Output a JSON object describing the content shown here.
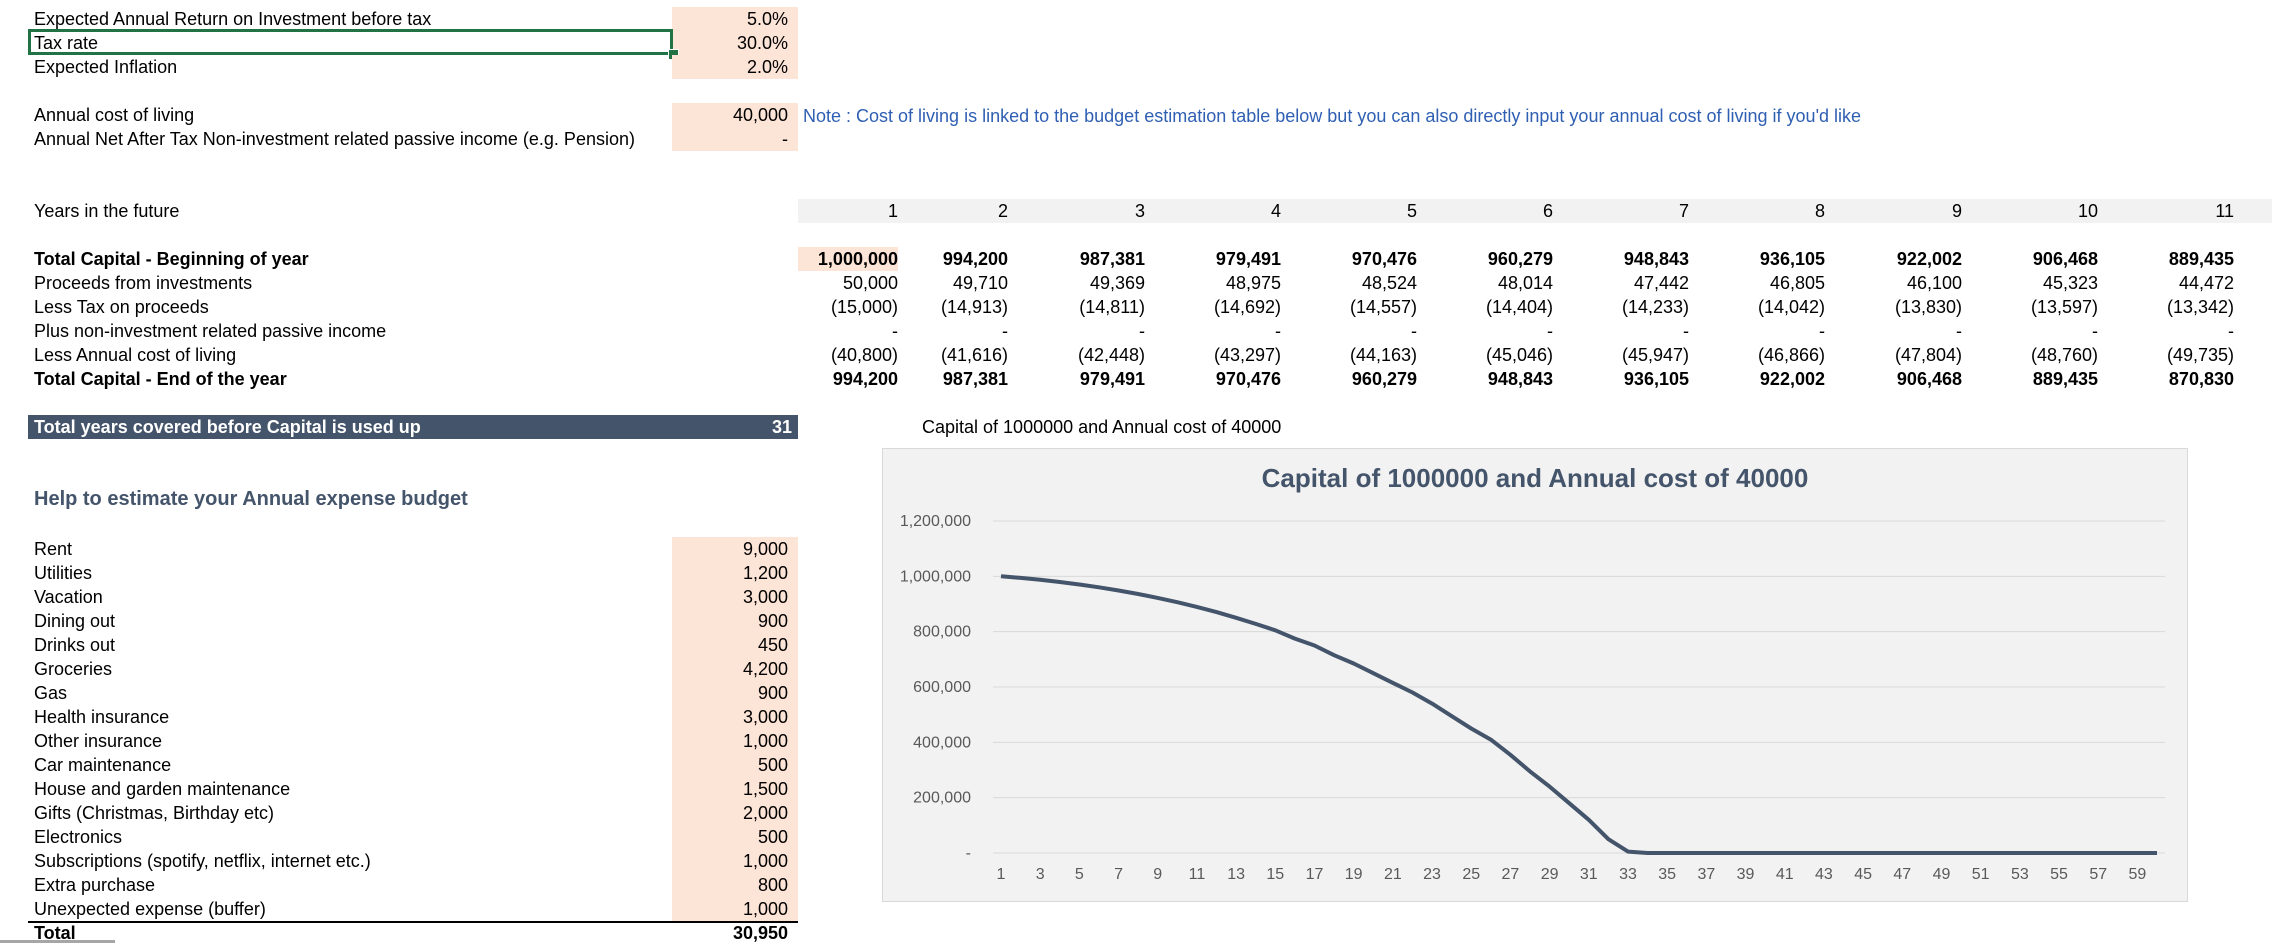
{
  "inputs": {
    "return_label": "Expected Annual Return on Investment before tax",
    "return_value": "5.0%",
    "tax_label": "Tax rate",
    "tax_value": "30.0%",
    "inflation_label": "Expected Inflation",
    "inflation_value": "2.0%",
    "cost_label": "Annual cost of living",
    "cost_value": "40,000",
    "cost_note": "Note : Cost of living is linked to the budget estimation table below but you can also directly input your annual cost of living if you'd like",
    "passive_label": "Annual Net After Tax Non-investment related passive income (e.g. Pension)",
    "passive_value": "-"
  },
  "projection": {
    "years_label": "Years in the future",
    "years": [
      "1",
      "2",
      "3",
      "4",
      "5",
      "6",
      "7",
      "8",
      "9",
      "10",
      "11"
    ],
    "rows": [
      {
        "label": "Total Capital - Beginning of year",
        "bold": true,
        "values": [
          "1,000,000",
          "994,200",
          "987,381",
          "979,491",
          "970,476",
          "960,279",
          "948,843",
          "936,105",
          "922,002",
          "906,468",
          "889,435"
        ]
      },
      {
        "label": "Proceeds from investments",
        "bold": false,
        "values": [
          "50,000",
          "49,710",
          "49,369",
          "48,975",
          "48,524",
          "48,014",
          "47,442",
          "46,805",
          "46,100",
          "45,323",
          "44,472"
        ]
      },
      {
        "label": "Less Tax on proceeds",
        "bold": false,
        "values": [
          "(15,000)",
          "(14,913)",
          "(14,811)",
          "(14,692)",
          "(14,557)",
          "(14,404)",
          "(14,233)",
          "(14,042)",
          "(13,830)",
          "(13,597)",
          "(13,342)"
        ]
      },
      {
        "label": "Plus non-investment related passive income",
        "bold": false,
        "values": [
          "-",
          "-",
          "-",
          "-",
          "-",
          "-",
          "-",
          "-",
          "-",
          "-",
          "-"
        ]
      },
      {
        "label": "Less Annual cost of living",
        "bold": false,
        "values": [
          "(40,800)",
          "(41,616)",
          "(42,448)",
          "(43,297)",
          "(44,163)",
          "(45,046)",
          "(45,947)",
          "(46,866)",
          "(47,804)",
          "(48,760)",
          "(49,735)"
        ]
      },
      {
        "label": "Total Capital - End of the year",
        "bold": true,
        "values": [
          "994,200",
          "987,381",
          "979,491",
          "970,476",
          "960,279",
          "948,843",
          "936,105",
          "922,002",
          "906,468",
          "889,435",
          "870,830"
        ]
      }
    ]
  },
  "summary": {
    "label": "Total years covered before Capital is used up",
    "value": "31",
    "bar_color": "#44546a"
  },
  "budget": {
    "title": "Help to estimate your Annual expense budget",
    "items": [
      {
        "name": "Rent",
        "value": "9,000"
      },
      {
        "name": "Utilities",
        "value": "1,200"
      },
      {
        "name": "Vacation",
        "value": "3,000"
      },
      {
        "name": "Dining out",
        "value": "900"
      },
      {
        "name": "Drinks out",
        "value": "450"
      },
      {
        "name": "Groceries",
        "value": "4,200"
      },
      {
        "name": "Gas",
        "value": "900"
      },
      {
        "name": "Health insurance",
        "value": "3,000"
      },
      {
        "name": "Other insurance",
        "value": "1,000"
      },
      {
        "name": "Car maintenance",
        "value": "500"
      },
      {
        "name": "House and garden maintenance",
        "value": "1,500"
      },
      {
        "name": "Gifts (Christmas, Birthday etc)",
        "value": "2,000"
      },
      {
        "name": "Electronics",
        "value": "500"
      },
      {
        "name": "Subscriptions (spotify, netflix, internet etc.)",
        "value": "1,000"
      },
      {
        "name": "Extra purchase",
        "value": "800"
      },
      {
        "name": "Unexpected expense (buffer)",
        "value": "1,000"
      }
    ],
    "total_label": "Total",
    "total_value": "30,950"
  },
  "colors": {
    "input_fill": "#fce4d6",
    "note_text": "#2f5fb3",
    "chart_line": "#44546a",
    "selection": "#217346"
  },
  "chart_data": {
    "type": "line",
    "caption": "Capital of 1000000 and Annual cost of 40000",
    "title": "Capital of 1000000 and Annual cost of 40000",
    "xlabel": "",
    "ylabel": "",
    "x": [
      1,
      2,
      3,
      4,
      5,
      6,
      7,
      8,
      9,
      10,
      11,
      12,
      13,
      14,
      15,
      16,
      17,
      18,
      19,
      20,
      21,
      22,
      23,
      24,
      25,
      26,
      27,
      28,
      29,
      30,
      31,
      32,
      33,
      34,
      35,
      36,
      37,
      38,
      39,
      40,
      41,
      42,
      43,
      44,
      45,
      46,
      47,
      48,
      49,
      50,
      51,
      52,
      53,
      54,
      55,
      56,
      57,
      58,
      59,
      60
    ],
    "x_tick_labels": [
      "1",
      "3",
      "5",
      "7",
      "9",
      "11",
      "13",
      "15",
      "17",
      "19",
      "21",
      "23",
      "25",
      "27",
      "29",
      "31",
      "33",
      "35",
      "37",
      "39",
      "41",
      "43",
      "45",
      "47",
      "49",
      "51",
      "53",
      "55",
      "57",
      "59"
    ],
    "y_tick_labels": [
      "-",
      "200,000",
      "400,000",
      "600,000",
      "800,000",
      "1,000,000",
      "1,200,000"
    ],
    "y_ticks": [
      0,
      200000,
      400000,
      600000,
      800000,
      1000000,
      1200000
    ],
    "ylim": [
      0,
      1200000
    ],
    "grid": true,
    "series": [
      {
        "values": [
          1000000,
          994200,
          987381,
          979491,
          970476,
          960279,
          948843,
          936105,
          922002,
          906468,
          889435,
          870830,
          850000,
          828000,
          805000,
          775000,
          750000,
          715000,
          685000,
          650000,
          615000,
          580000,
          540000,
          495000,
          450000,
          410000,
          355000,
          295000,
          240000,
          180000,
          120000,
          50000,
          5000,
          0,
          0,
          0,
          0,
          0,
          0,
          0,
          0,
          0,
          0,
          0,
          0,
          0,
          0,
          0,
          0,
          0,
          0,
          0,
          0,
          0,
          0,
          0,
          0,
          0,
          0,
          0
        ]
      }
    ]
  }
}
